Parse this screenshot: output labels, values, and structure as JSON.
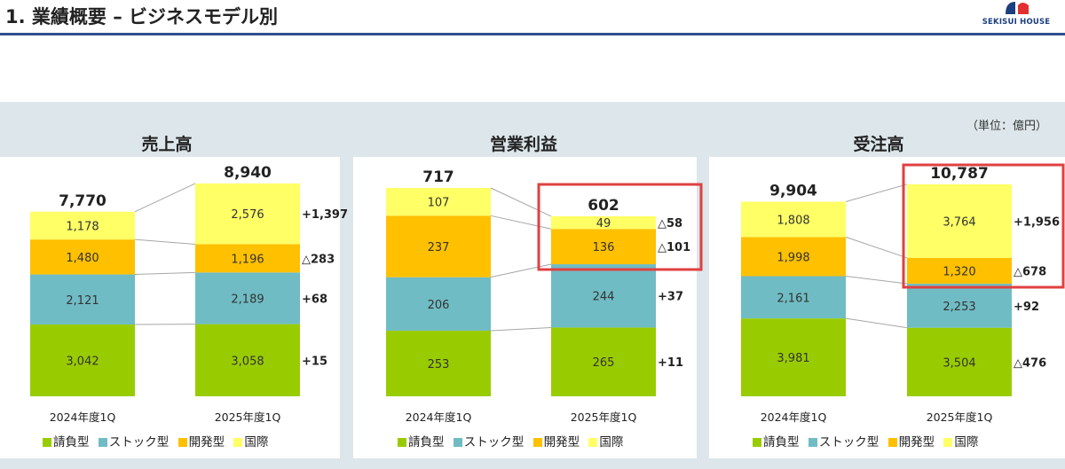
{
  "header": {
    "title": "1. 業績概要 – ビジネスモデル別",
    "logo_text": "SEKISUI HOUSE"
  },
  "unit_label": "（単位：億円）",
  "colors": {
    "contract": "#99cc00",
    "stock": "#70bcc4",
    "development": "#ffc000",
    "international": "#ffff66",
    "highlight": "#e04040",
    "connector": "#a6a6a6"
  },
  "legend": [
    "請負型",
    "ストック型",
    "開発型",
    "国際"
  ],
  "chart_data": [
    {
      "type": "bar",
      "title": "売上高",
      "categories": [
        "2024年度1Q",
        "2025年度1Q"
      ],
      "series": [
        {
          "name": "請負型",
          "values": [
            3042,
            3058
          ],
          "labels": [
            "3,042",
            "3,058"
          ]
        },
        {
          "name": "ストック型",
          "values": [
            2121,
            2189
          ],
          "labels": [
            "2,121",
            "2,189"
          ]
        },
        {
          "name": "開発型",
          "values": [
            1480,
            1196
          ],
          "labels": [
            "1,480",
            "1,196"
          ]
        },
        {
          "name": "国際",
          "values": [
            1178,
            2576
          ],
          "labels": [
            "1,178",
            "2,576"
          ]
        }
      ],
      "totals": [
        "7,770",
        "8,940"
      ],
      "changes": [
        "+15",
        "+68",
        "△283",
        "+1,397"
      ]
    },
    {
      "type": "bar",
      "title": "営業利益",
      "categories": [
        "2024年度1Q",
        "2025年度1Q"
      ],
      "series": [
        {
          "name": "請負型",
          "values": [
            253,
            265
          ],
          "labels": [
            "253",
            "265"
          ]
        },
        {
          "name": "ストック型",
          "values": [
            206,
            244
          ],
          "labels": [
            "206",
            "244"
          ]
        },
        {
          "name": "開発型",
          "values": [
            237,
            136
          ],
          "labels": [
            "237",
            "136"
          ]
        },
        {
          "name": "国際",
          "values": [
            107,
            49
          ],
          "labels": [
            "107",
            "49"
          ]
        }
      ],
      "totals": [
        "717",
        "602"
      ],
      "changes": [
        "+11",
        "+37",
        "△101",
        "△58"
      ]
    },
    {
      "type": "bar",
      "title": "受注高",
      "categories": [
        "2024年度1Q",
        "2025年度1Q"
      ],
      "series": [
        {
          "name": "請負型",
          "values": [
            3981,
            3504
          ],
          "labels": [
            "3,981",
            "3,504"
          ]
        },
        {
          "name": "ストック型",
          "values": [
            2161,
            2253
          ],
          "labels": [
            "2,161",
            "2,253"
          ]
        },
        {
          "name": "開発型",
          "values": [
            1998,
            1320
          ],
          "labels": [
            "1,998",
            "1,320"
          ]
        },
        {
          "name": "国際",
          "values": [
            1808,
            3764
          ],
          "labels": [
            "1,808",
            "3,764"
          ]
        }
      ],
      "totals": [
        "9,904",
        "10,787"
      ],
      "changes": [
        "△476",
        "+92",
        "△678",
        "+1,956"
      ]
    }
  ]
}
